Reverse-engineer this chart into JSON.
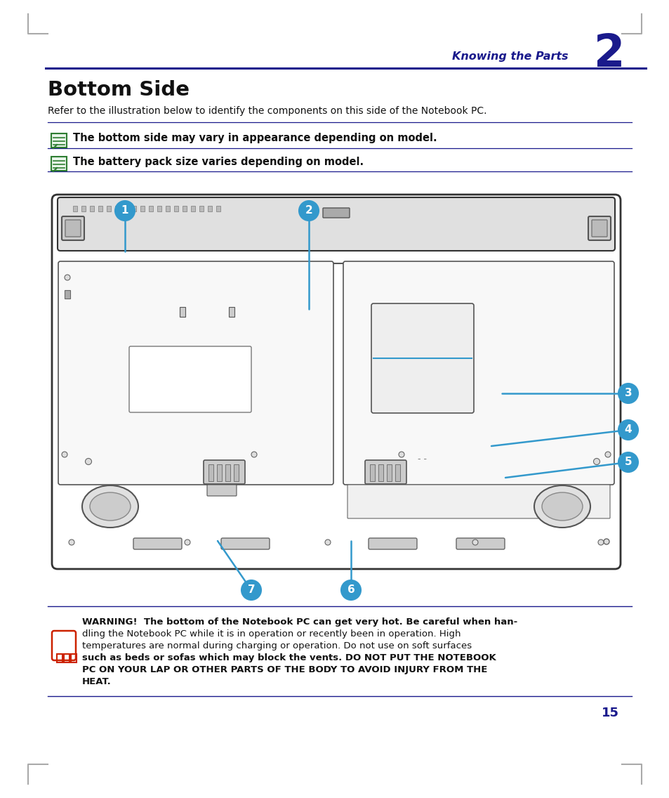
{
  "bg_color": "#ffffff",
  "dark_blue": "#1a1a8c",
  "callout_blue": "#3399cc",
  "black": "#111111",
  "gray_line": "#aaaaaa",
  "green_icon": "#2e7d32",
  "green_icon_bg": "#e8f5e9",
  "red": "#cc2200",
  "chapter_number": "2",
  "chapter_title": "Knowing the Parts",
  "section_title": "Bottom Side",
  "intro_text": "Refer to the illustration below to identify the components on this side of the Notebook PC.",
  "note1": "The bottom side may vary in appearance depending on model.",
  "note2": "The battery pack size varies depending on model.",
  "warning_text_line1": "WARNING!  The bottom of the Notebook PC can get very hot. Be careful when han-",
  "warning_text_line2": "dling the Notebook PC while it is in operation or recently been in operation. High",
  "warning_text_line3": "temperatures are normal during charging or operation. Do not use on soft surfaces",
  "warning_text_line4": "such as beds or sofas which may block the vents. DO NOT PUT THE NOTEBOOK",
  "warning_text_line5": "PC ON YOUR LAP OR OTHER PARTS OF THE BODY TO AVOID INJURY FROM THE",
  "warning_text_line6": "HEAT.",
  "page_number": "15",
  "laptop_fc": "#ffffff",
  "laptop_ec": "#333333",
  "laptop_border_fc": "#cccccc",
  "panel_fc": "#f5f5f5",
  "subpanel_fc": "#eeeeee",
  "screw_fc": "#dddddd",
  "vent_fc": "#cccccc"
}
